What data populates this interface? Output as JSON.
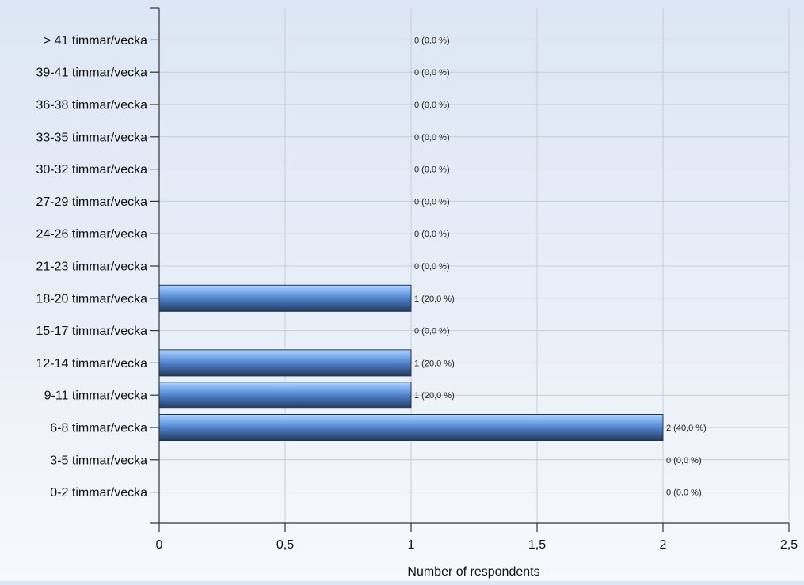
{
  "chart_data": {
    "type": "bar",
    "orientation": "horizontal",
    "categories": [
      "> 41 timmar/vecka",
      "39-41 timmar/vecka",
      "36-38 timmar/vecka",
      "33-35 timmar/vecka",
      "30-32 timmar/vecka",
      "27-29 timmar/vecka",
      "24-26 timmar/vecka",
      "21-23 timmar/vecka",
      "18-20 timmar/vecka",
      "15-17 timmar/vecka",
      "12-14 timmar/vecka",
      "9-11 timmar/vecka",
      "6-8 timmar/vecka",
      "3-5 timmar/vecka",
      "0-2 timmar/vecka"
    ],
    "values": [
      0,
      0,
      0,
      0,
      0,
      0,
      0,
      0,
      1,
      0,
      1,
      1,
      2,
      0,
      0
    ],
    "data_labels": [
      "0 (0,0 %)",
      "0 (0,0 %)",
      "0 (0,0 %)",
      "0 (0,0 %)",
      "0 (0,0 %)",
      "0 (0,0 %)",
      "0 (0,0 %)",
      "0 (0,0 %)",
      "1 (20,0 %)",
      "0 (0,0 %)",
      "1 (20,0 %)",
      "1 (20,0 %)",
      "2 (40,0 %)",
      "0 (0,0 %)",
      "0 (0,0 %)"
    ],
    "xlabel": "Number of respondents",
    "ylabel": "",
    "xlim": [
      0,
      2.5
    ],
    "xticks": [
      0,
      0.5,
      1,
      1.5,
      2,
      2.5
    ],
    "xtick_labels": [
      "0",
      "0,5",
      "1",
      "1,5",
      "2",
      "2,5"
    ],
    "grid": true,
    "colors": {
      "bar_light": "#8ab8f5",
      "bar_mid": "#4a7cc4",
      "bar_dark": "#233a5c",
      "grid": "#c8ccd4",
      "axis": "#333333"
    }
  }
}
